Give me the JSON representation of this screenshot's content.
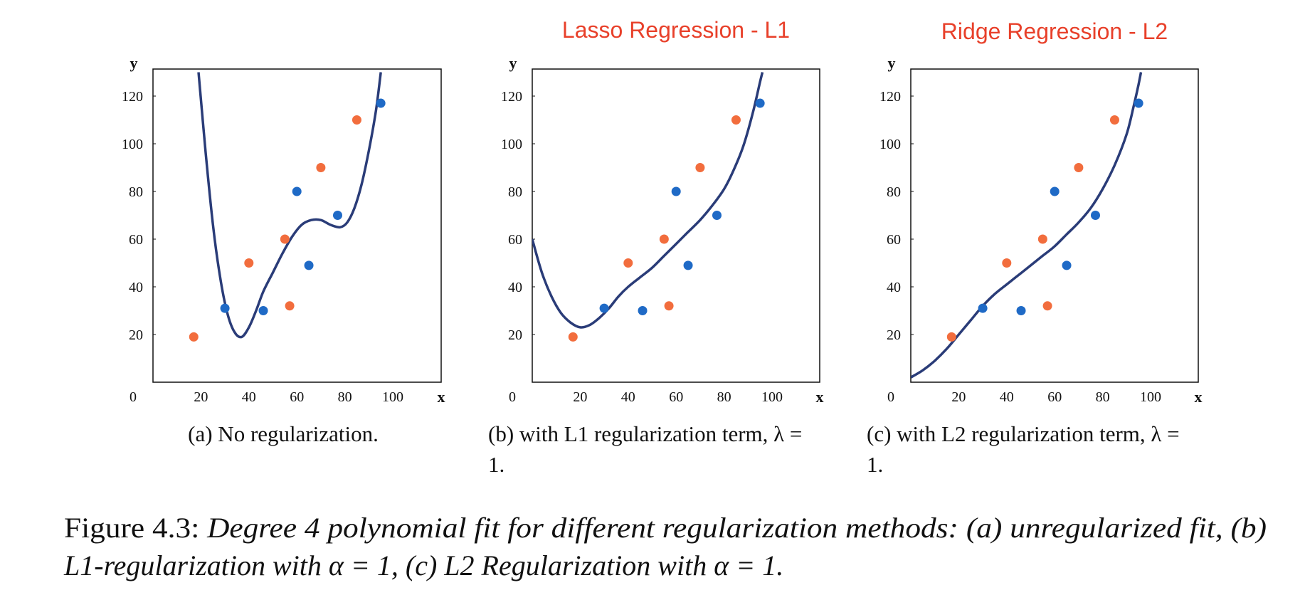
{
  "chart_data": [
    {
      "type": "scatter",
      "title": "",
      "xlabel": "x",
      "ylabel": "y",
      "xlim": [
        0,
        120
      ],
      "ylim": [
        0,
        130
      ],
      "x_ticks": [
        "20",
        "40",
        "60",
        "80",
        "100"
      ],
      "y_ticks": [
        "20",
        "40",
        "60",
        "80",
        "100",
        "120"
      ],
      "origin_label": "0",
      "subcaption": "(a) No regularization.",
      "curve_color": "#2a3c78",
      "series": [
        {
          "color": "#1f6ac6",
          "points": [
            [
              30,
              31
            ],
            [
              46,
              30
            ],
            [
              60,
              80
            ],
            [
              65,
              49
            ],
            [
              77,
              70
            ],
            [
              95,
              117
            ]
          ]
        },
        {
          "color": "#f26d3d",
          "points": [
            [
              17,
              19
            ],
            [
              40,
              50
            ],
            [
              55,
              60
            ],
            [
              57,
              32
            ],
            [
              70,
              90
            ],
            [
              85,
              110
            ]
          ]
        }
      ],
      "fit_curve": [
        [
          19,
          130
        ],
        [
          22,
          96
        ],
        [
          25,
          66
        ],
        [
          28,
          44
        ],
        [
          31,
          29
        ],
        [
          34,
          21
        ],
        [
          37,
          19
        ],
        [
          40,
          23
        ],
        [
          43,
          30
        ],
        [
          46,
          38
        ],
        [
          50,
          46
        ],
        [
          54,
          54
        ],
        [
          58,
          61
        ],
        [
          62,
          66
        ],
        [
          66,
          68
        ],
        [
          70,
          68
        ],
        [
          74,
          66
        ],
        [
          78,
          65
        ],
        [
          81,
          67
        ],
        [
          84,
          73
        ],
        [
          87,
          83
        ],
        [
          90,
          97
        ],
        [
          93,
          114
        ],
        [
          95,
          130
        ]
      ]
    },
    {
      "type": "scatter",
      "title": "Lasso Regression - L1",
      "xlabel": "x",
      "ylabel": "y",
      "xlim": [
        0,
        120
      ],
      "ylim": [
        0,
        130
      ],
      "x_ticks": [
        "20",
        "40",
        "60",
        "80",
        "100"
      ],
      "y_ticks": [
        "20",
        "40",
        "60",
        "80",
        "100",
        "120"
      ],
      "origin_label": "0",
      "subcaption_lines": [
        "(b) with L1 regularization term, λ =",
        "1."
      ],
      "curve_color": "#2a3c78",
      "series": [
        {
          "color": "#1f6ac6",
          "points": [
            [
              30,
              31
            ],
            [
              46,
              30
            ],
            [
              60,
              80
            ],
            [
              65,
              49
            ],
            [
              77,
              70
            ],
            [
              95,
              117
            ]
          ]
        },
        {
          "color": "#f26d3d",
          "points": [
            [
              17,
              19
            ],
            [
              40,
              50
            ],
            [
              55,
              60
            ],
            [
              57,
              32
            ],
            [
              70,
              90
            ],
            [
              85,
              110
            ]
          ]
        }
      ],
      "fit_curve": [
        [
          0,
          60
        ],
        [
          4,
          46
        ],
        [
          8,
          36
        ],
        [
          12,
          29
        ],
        [
          16,
          25
        ],
        [
          20,
          23
        ],
        [
          24,
          24
        ],
        [
          28,
          27
        ],
        [
          32,
          31
        ],
        [
          36,
          36
        ],
        [
          40,
          40
        ],
        [
          45,
          44
        ],
        [
          50,
          48
        ],
        [
          55,
          53
        ],
        [
          60,
          58
        ],
        [
          65,
          63
        ],
        [
          70,
          68
        ],
        [
          75,
          74
        ],
        [
          80,
          81
        ],
        [
          84,
          89
        ],
        [
          88,
          99
        ],
        [
          92,
          113
        ],
        [
          95,
          126
        ],
        [
          96,
          130
        ]
      ]
    },
    {
      "type": "scatter",
      "title": "Ridge Regression - L2",
      "xlabel": "x",
      "ylabel": "y",
      "xlim": [
        0,
        120
      ],
      "ylim": [
        0,
        130
      ],
      "x_ticks": [
        "20",
        "40",
        "60",
        "80",
        "100"
      ],
      "y_ticks": [
        "20",
        "40",
        "60",
        "80",
        "100",
        "120"
      ],
      "origin_label": "0",
      "subcaption_lines": [
        "(c) with L2 regularization term, λ =",
        "1."
      ],
      "curve_color": "#2a3c78",
      "series": [
        {
          "color": "#1f6ac6",
          "points": [
            [
              30,
              31
            ],
            [
              46,
              30
            ],
            [
              60,
              80
            ],
            [
              65,
              49
            ],
            [
              77,
              70
            ],
            [
              95,
              117
            ]
          ]
        },
        {
          "color": "#f26d3d",
          "points": [
            [
              17,
              19
            ],
            [
              40,
              50
            ],
            [
              55,
              60
            ],
            [
              57,
              32
            ],
            [
              70,
              90
            ],
            [
              85,
              110
            ]
          ]
        }
      ],
      "fit_curve": [
        [
          0,
          2
        ],
        [
          5,
          5
        ],
        [
          10,
          9
        ],
        [
          15,
          14
        ],
        [
          20,
          20
        ],
        [
          25,
          26
        ],
        [
          30,
          32
        ],
        [
          35,
          37
        ],
        [
          40,
          41
        ],
        [
          45,
          45
        ],
        [
          50,
          49
        ],
        [
          55,
          53
        ],
        [
          60,
          57
        ],
        [
          65,
          62
        ],
        [
          70,
          67
        ],
        [
          75,
          73
        ],
        [
          80,
          81
        ],
        [
          85,
          91
        ],
        [
          90,
          104
        ],
        [
          93,
          116
        ],
        [
          95,
          125
        ],
        [
          96,
          130
        ]
      ]
    }
  ],
  "caption": {
    "line1_prefix": "Figure 4.3: ",
    "line1_italic": "Degree 4 polynomial fit for different regularization methods: (a) unregularized fit, (b)",
    "line2": "L1-regularization with α = 1, (c) L2 Regularization with α = 1."
  }
}
